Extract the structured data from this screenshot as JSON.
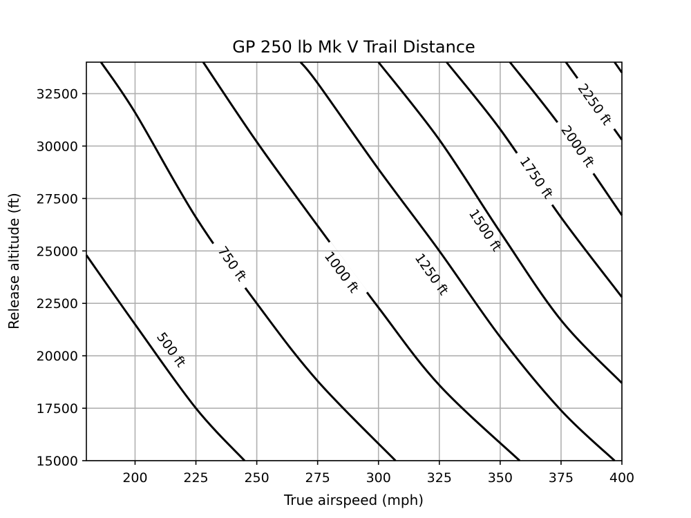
{
  "chart_data": {
    "type": "line",
    "title": "GP 250 lb Mk V Trail Distance",
    "xlabel": "True airspeed (mph)",
    "ylabel": "Release altitude (ft)",
    "xlim": [
      180,
      400
    ],
    "ylim": [
      15000,
      34000
    ],
    "xticks": [
      200,
      225,
      250,
      275,
      300,
      325,
      350,
      375,
      400
    ],
    "yticks": [
      15000,
      17500,
      20000,
      22500,
      25000,
      27500,
      30000,
      32500
    ],
    "grid": true,
    "series": [
      {
        "name": "500 ft",
        "label_pos": [
          215,
          20300
        ],
        "points": [
          [
            180,
            24800
          ],
          [
            200,
            21500
          ],
          [
            225,
            17500
          ],
          [
            245,
            15000
          ]
        ]
      },
      {
        "name": "750 ft",
        "label_pos": [
          240,
          24400
        ],
        "points": [
          [
            186,
            34000
          ],
          [
            200,
            31600
          ],
          [
            225,
            26600
          ],
          [
            250,
            22500
          ],
          [
            275,
            18800
          ],
          [
            307,
            15000
          ]
        ]
      },
      {
        "name": "1000 ft",
        "label_pos": [
          285,
          24000
        ],
        "points": [
          [
            228,
            34000
          ],
          [
            250,
            30200
          ],
          [
            275,
            26200
          ],
          [
            300,
            22300
          ],
          [
            325,
            18600
          ],
          [
            358,
            15000
          ]
        ]
      },
      {
        "name": "1250 ft",
        "label_pos": [
          322,
          23900
        ],
        "points": [
          [
            268,
            34000
          ],
          [
            275,
            33000
          ],
          [
            300,
            28900
          ],
          [
            325,
            25000
          ],
          [
            350,
            20900
          ],
          [
            375,
            17400
          ],
          [
            397,
            15000
          ]
        ]
      },
      {
        "name": "1500 ft",
        "label_pos": [
          344,
          26000
        ],
        "points": [
          [
            300,
            34000
          ],
          [
            325,
            30300
          ],
          [
            350,
            25900
          ],
          [
            375,
            21700
          ],
          [
            400,
            18700
          ]
        ]
      },
      {
        "name": "1750 ft",
        "label_pos": [
          365,
          28500
        ],
        "points": [
          [
            328,
            34000
          ],
          [
            350,
            30800
          ],
          [
            375,
            26600
          ],
          [
            400,
            22800
          ]
        ]
      },
      {
        "name": "2000 ft",
        "label_pos": [
          382,
          30000
        ],
        "points": [
          [
            354,
            34000
          ],
          [
            375,
            30900
          ],
          [
            400,
            26700
          ]
        ]
      },
      {
        "name": "2250 ft",
        "label_pos": [
          389,
          32000
        ],
        "points": [
          [
            377,
            34000
          ],
          [
            400,
            30300
          ]
        ]
      },
      {
        "name": "",
        "label_pos": null,
        "points": [
          [
            397,
            34000
          ],
          [
            400,
            33500
          ]
        ]
      }
    ]
  }
}
